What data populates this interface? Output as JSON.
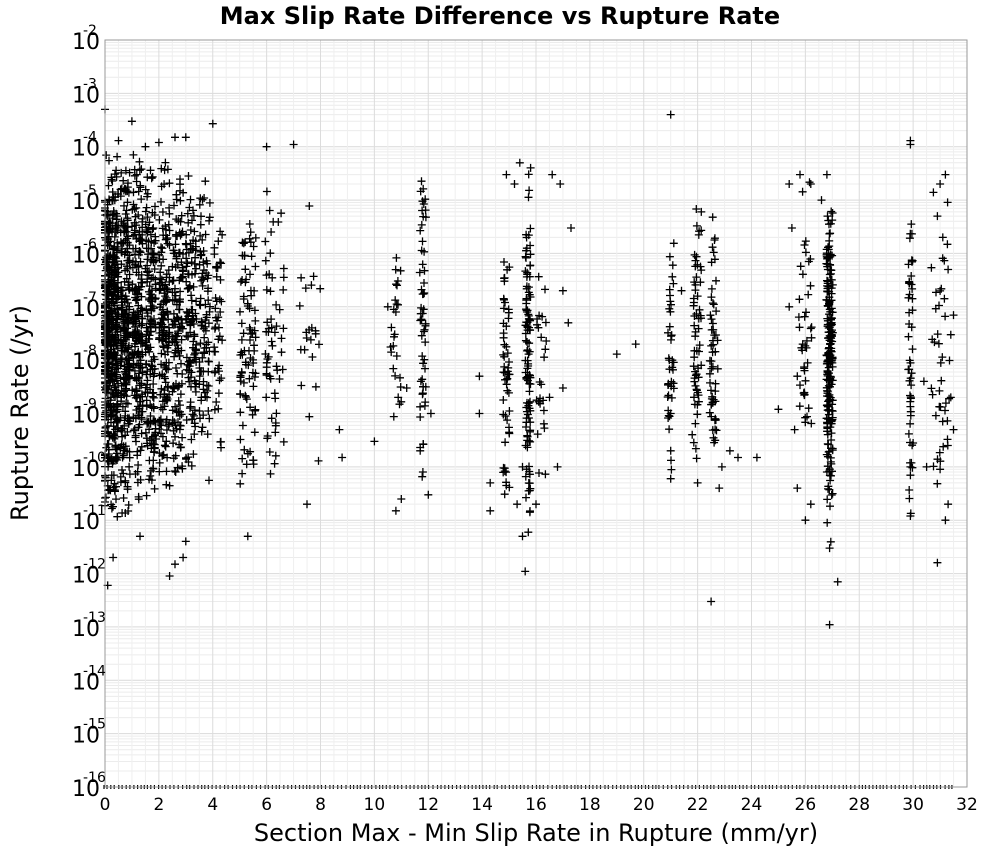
{
  "chart_data": {
    "type": "scatter",
    "title": "Max Slip Rate Difference vs Rupture Rate",
    "xlabel": "Section Max - Min Slip Rate in Rupture (mm/yr)",
    "ylabel": "Rupture Rate (/yr)",
    "x_scale": "linear",
    "y_scale": "log",
    "xlim": [
      0,
      32
    ],
    "ylim": [
      1e-16,
      0.01
    ],
    "grid": true,
    "legend": "none",
    "marker": "+",
    "marker_color": "#000000",
    "x_ticks": [
      "0",
      "2",
      "4",
      "6",
      "8",
      "10",
      "12",
      "14",
      "16",
      "18",
      "20",
      "22",
      "24",
      "26",
      "28",
      "30",
      "32"
    ],
    "y_ticks": [
      {
        "base": "10",
        "exp": "-2"
      },
      {
        "base": "10",
        "exp": "-3"
      },
      {
        "base": "10",
        "exp": "-4"
      },
      {
        "base": "10",
        "exp": "-5"
      },
      {
        "base": "10",
        "exp": "-6"
      },
      {
        "base": "10",
        "exp": "-7"
      },
      {
        "base": "10",
        "exp": "-8"
      },
      {
        "base": "10",
        "exp": "-9"
      },
      {
        "base": "10",
        "exp": "-10"
      },
      {
        "base": "10",
        "exp": "-11"
      },
      {
        "base": "10",
        "exp": "-12"
      },
      {
        "base": "10",
        "exp": "-13"
      },
      {
        "base": "10",
        "exp": "-14"
      },
      {
        "base": "10",
        "exp": "-15"
      },
      {
        "base": "10",
        "exp": "-16"
      }
    ],
    "points": [
      [
        0.0,
        0.0005
      ],
      [
        1.0,
        0.0003
      ],
      [
        4.0,
        0.00027
      ],
      [
        7.0,
        0.00011
      ],
      [
        6.0,
        0.0001
      ],
      [
        3.0,
        0.00015
      ],
      [
        2.0,
        0.00012
      ],
      [
        0.5,
        0.00013
      ],
      [
        1.5,
        0.0001
      ],
      [
        2.6,
        0.00015
      ],
      [
        21.0,
        0.0004
      ],
      [
        29.9,
        0.00013
      ],
      [
        29.9,
        0.00011
      ],
      [
        0.3,
        2e-12
      ],
      [
        0.1,
        6e-13
      ],
      [
        2.4,
        9e-13
      ],
      [
        2.6,
        1.5e-12
      ],
      [
        2.9,
        2e-12
      ],
      [
        3.0,
        4e-12
      ],
      [
        1.3,
        5e-12
      ],
      [
        5.3,
        5e-12
      ],
      [
        8.8,
        1.5e-10
      ],
      [
        8.7,
        5e-10
      ],
      [
        7.5,
        2e-11
      ],
      [
        10.8,
        1.5e-11
      ],
      [
        10.0,
        3e-10
      ],
      [
        11.0,
        2.5e-11
      ],
      [
        11.8,
        8e-11
      ],
      [
        12.0,
        3e-11
      ],
      [
        11.7,
        2e-10
      ],
      [
        12.1,
        1e-09
      ],
      [
        10.5,
        1e-07
      ],
      [
        10.8,
        8e-08
      ],
      [
        11.2,
        3e-09
      ],
      [
        13.9,
        5e-09
      ],
      [
        13.9,
        1e-09
      ],
      [
        14.3,
        5e-11
      ],
      [
        14.3,
        1.5e-11
      ],
      [
        15.5,
        1e-10
      ],
      [
        15.6,
        1.1e-12
      ],
      [
        15.5,
        5e-12
      ],
      [
        15.3,
        2e-11
      ],
      [
        16.0,
        2e-11
      ],
      [
        16.5,
        2e-09
      ],
      [
        16.8,
        1e-10
      ],
      [
        17.0,
        3e-09
      ],
      [
        17.2,
        5e-08
      ],
      [
        17.0,
        2e-07
      ],
      [
        17.3,
        3e-06
      ],
      [
        16.9,
        2e-05
      ],
      [
        16.6,
        3e-05
      ],
      [
        15.8,
        4e-05
      ],
      [
        15.4,
        5e-05
      ],
      [
        14.9,
        3e-05
      ],
      [
        15.2,
        2e-05
      ],
      [
        19.0,
        1.3e-08
      ],
      [
        19.7,
        2e-08
      ],
      [
        21.0,
        1e-09
      ],
      [
        21.0,
        2e-10
      ],
      [
        21.0,
        6e-11
      ],
      [
        21.4,
        2e-07
      ],
      [
        21.8,
        4e-10
      ],
      [
        22.0,
        5e-11
      ],
      [
        22.5,
        3e-13
      ],
      [
        22.8,
        4e-11
      ],
      [
        22.9,
        1e-10
      ],
      [
        23.2,
        2e-10
      ],
      [
        23.5,
        1.5e-10
      ],
      [
        24.2,
        1.5e-10
      ],
      [
        25.0,
        1.2e-09
      ],
      [
        25.7,
        5e-09
      ],
      [
        25.6,
        5e-10
      ],
      [
        25.7,
        4e-11
      ],
      [
        26.0,
        1e-11
      ],
      [
        26.2,
        2e-11
      ],
      [
        26.8,
        8e-11
      ],
      [
        26.9,
        3e-12
      ],
      [
        27.2,
        7e-13
      ],
      [
        26.9,
        1.1e-13
      ],
      [
        29.9,
        1e-10
      ],
      [
        29.9,
        1.2e-11
      ],
      [
        30.0,
        2.8e-10
      ],
      [
        30.4,
        4e-09
      ],
      [
        30.5,
        1e-10
      ],
      [
        30.9,
        1.6e-12
      ],
      [
        31.0,
        9e-11
      ],
      [
        31.2,
        1e-11
      ],
      [
        31.3,
        2e-11
      ],
      [
        31.4,
        2e-09
      ],
      [
        31.5,
        5e-10
      ],
      [
        30.9,
        5e-06
      ],
      [
        31.0,
        2e-05
      ],
      [
        31.2,
        3e-05
      ],
      [
        31.1,
        2e-06
      ],
      [
        31.3,
        5e-07
      ],
      [
        31.4,
        3e-08
      ],
      [
        31.5,
        7e-08
      ],
      [
        25.4,
        2e-05
      ],
      [
        25.8,
        3e-05
      ],
      [
        26.2,
        2e-05
      ],
      [
        26.6,
        1e-05
      ],
      [
        26.8,
        3e-05
      ],
      [
        25.5,
        3e-06
      ],
      [
        25.4,
        1e-07
      ],
      [
        25.9,
        2e-08
      ]
    ],
    "columns": [
      {
        "x": 0.05,
        "spread": 0.12,
        "ymin": 1e-11,
        "ymax": 0.0001,
        "n": 280
      },
      {
        "x": 0.35,
        "spread": 0.15,
        "ymin": 7e-12,
        "ymax": 0.00015,
        "n": 260
      },
      {
        "x": 0.75,
        "spread": 0.18,
        "ymin": 8e-12,
        "ymax": 0.00012,
        "n": 230
      },
      {
        "x": 1.2,
        "spread": 0.2,
        "ymin": 1e-11,
        "ymax": 0.0001,
        "n": 200
      },
      {
        "x": 1.7,
        "spread": 0.2,
        "ymin": 1e-11,
        "ymax": 0.0001,
        "n": 180
      },
      {
        "x": 2.2,
        "spread": 0.2,
        "ymin": 2e-11,
        "ymax": 0.0001,
        "n": 160
      },
      {
        "x": 2.7,
        "spread": 0.2,
        "ymin": 2e-11,
        "ymax": 0.0001,
        "n": 140
      },
      {
        "x": 3.2,
        "spread": 0.2,
        "ymin": 3e-11,
        "ymax": 8e-05,
        "n": 120
      },
      {
        "x": 3.7,
        "spread": 0.2,
        "ymin": 3e-11,
        "ymax": 5e-05,
        "n": 90
      },
      {
        "x": 4.2,
        "spread": 0.15,
        "ymin": 5e-11,
        "ymax": 3e-05,
        "n": 45
      },
      {
        "x": 5.3,
        "spread": 0.3,
        "ymin": 1e-11,
        "ymax": 3e-05,
        "n": 90
      },
      {
        "x": 6.3,
        "spread": 0.35,
        "ymin": 2e-11,
        "ymax": 3e-05,
        "n": 60
      },
      {
        "x": 7.6,
        "spread": 0.4,
        "ymin": 2e-11,
        "ymax": 3e-05,
        "n": 22
      },
      {
        "x": 10.8,
        "spread": 0.2,
        "ymin": 3e-10,
        "ymax": 1e-05,
        "n": 25
      },
      {
        "x": 11.8,
        "spread": 0.12,
        "ymin": 3e-11,
        "ymax": 3e-05,
        "n": 55
      },
      {
        "x": 14.9,
        "spread": 0.12,
        "ymin": 1e-11,
        "ymax": 3e-06,
        "n": 55
      },
      {
        "x": 15.7,
        "spread": 0.1,
        "ymin": 5e-12,
        "ymax": 5e-05,
        "n": 110
      },
      {
        "x": 16.2,
        "spread": 0.2,
        "ymin": 1e-11,
        "ymax": 1e-06,
        "n": 25
      },
      {
        "x": 21.0,
        "spread": 0.12,
        "ymin": 5e-11,
        "ymax": 1e-05,
        "n": 40
      },
      {
        "x": 22.0,
        "spread": 0.15,
        "ymin": 5e-11,
        "ymax": 2e-05,
        "n": 60
      },
      {
        "x": 22.6,
        "spread": 0.15,
        "ymin": 5e-11,
        "ymax": 2e-05,
        "n": 55
      },
      {
        "x": 26.0,
        "spread": 0.25,
        "ymin": 2e-11,
        "ymax": 3e-05,
        "n": 40
      },
      {
        "x": 26.9,
        "spread": 0.12,
        "ymin": 3e-12,
        "ymax": 2e-05,
        "n": 220
      },
      {
        "x": 29.9,
        "spread": 0.08,
        "ymin": 1e-11,
        "ymax": 1e-05,
        "n": 50
      },
      {
        "x": 31.0,
        "spread": 0.35,
        "ymin": 1e-11,
        "ymax": 3e-05,
        "n": 40
      }
    ],
    "baseline_segments": [
      {
        "xmin": 0.0,
        "xmax": 31.5,
        "y": 1e-16
      }
    ]
  }
}
